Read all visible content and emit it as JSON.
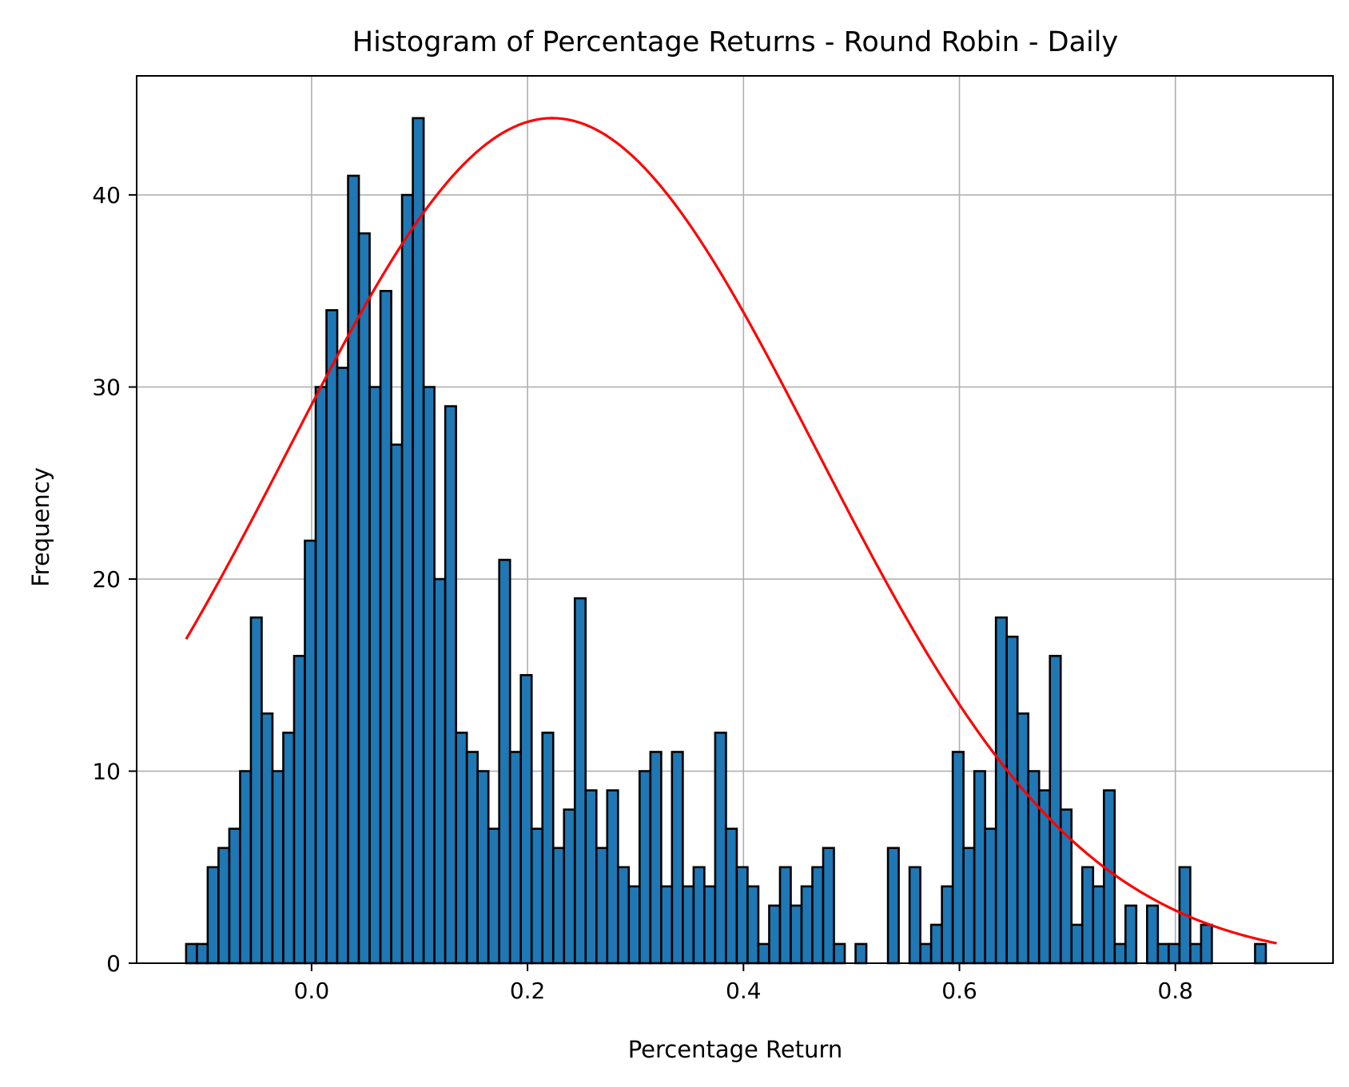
{
  "chart_data": {
    "type": "bar",
    "subtype": "histogram",
    "title": "Histogram of Percentage Returns - Round Robin - Daily",
    "xlabel": "Percentage Return",
    "ylabel": "Frequency",
    "xlim": [
      -0.162,
      0.946
    ],
    "ylim": [
      0,
      46.2
    ],
    "xticks": [
      0.0,
      0.2,
      0.4,
      0.6,
      0.8
    ],
    "xtick_labels": [
      "0.0",
      "0.2",
      "0.4",
      "0.6",
      "0.8"
    ],
    "yticks": [
      0,
      10,
      20,
      30,
      40
    ],
    "ytick_labels": [
      "0",
      "10",
      "20",
      "30",
      "40"
    ],
    "grid": true,
    "bar_color": "#1f77b4",
    "bar_edge_color": "#000000",
    "curve_color": "#ff0000",
    "bin_start": -0.1162,
    "bin_width": 0.01,
    "counts": [
      1,
      1,
      5,
      6,
      7,
      10,
      18,
      13,
      10,
      12,
      16,
      22,
      30,
      34,
      31,
      41,
      38,
      30,
      35,
      27,
      40,
      44,
      30,
      20,
      29,
      12,
      11,
      10,
      7,
      21,
      11,
      15,
      7,
      12,
      6,
      8,
      19,
      9,
      6,
      9,
      5,
      4,
      10,
      11,
      4,
      11,
      4,
      5,
      4,
      12,
      7,
      5,
      4,
      1,
      3,
      5,
      3,
      4,
      5,
      6,
      1,
      0,
      1,
      0,
      0,
      6,
      0,
      5,
      1,
      2,
      4,
      11,
      6,
      10,
      7,
      18,
      17,
      13,
      10,
      9,
      16,
      8,
      2,
      5,
      4,
      9,
      1,
      3,
      0,
      3,
      1,
      1,
      5,
      1,
      2,
      0,
      0,
      0,
      0,
      1
    ],
    "normal_fit": {
      "label": "",
      "peak": 44.0,
      "mean": 0.223,
      "std": 0.245,
      "x_range": [
        -0.1162,
        0.8938
      ]
    }
  }
}
